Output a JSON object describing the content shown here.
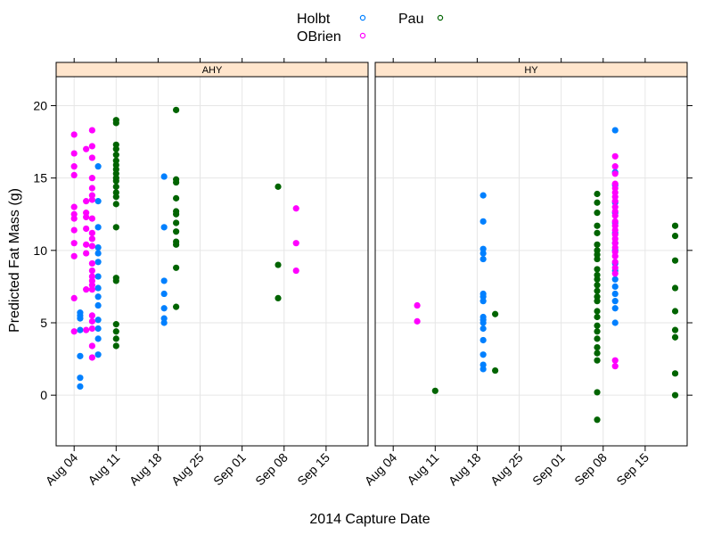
{
  "chart_data": {
    "type": "scatter",
    "xlabel": "2014 Capture Date",
    "ylabel": "Predicted Fat Mass (g)",
    "ylim": [
      -3.5,
      22
    ],
    "y_ticks": [
      0,
      5,
      10,
      15,
      20
    ],
    "x_ticks": [
      "Aug 04",
      "Aug 11",
      "Aug 18",
      "Aug 25",
      "Sep 01",
      "Sep 08",
      "Sep 15"
    ],
    "x_tick_dates": [
      "2014-08-04",
      "2014-08-11",
      "2014-08-18",
      "2014-08-25",
      "2014-09-01",
      "2014-09-08",
      "2014-09-15"
    ],
    "grid": true,
    "legend": {
      "placement": "top",
      "entries": [
        {
          "name": "Holbt",
          "color": "#0080ff"
        },
        {
          "name": "OBrien",
          "color": "#ff00ff"
        },
        {
          "name": "Pau",
          "color": "#006400"
        }
      ]
    },
    "panels": [
      {
        "strip": "AHY",
        "xlim": [
          "2014-08-01",
          "2014-09-22"
        ],
        "series": [
          {
            "name": "Holbt",
            "color": "#0080ff",
            "points": [
              {
                "x": "2014-08-05",
                "y": [
                  0.6,
                  1.2,
                  2.7,
                  4.5,
                  5.3,
                  5.5,
                  5.7
                ]
              },
              {
                "x": "2014-08-08",
                "y": [
                  2.8,
                  3.9,
                  4.6,
                  5.2,
                  6.2,
                  6.8,
                  7.4,
                  8.2,
                  9.2,
                  9.8,
                  10.2,
                  11.6,
                  13.4,
                  15.8
                ]
              },
              {
                "x": "2014-08-19",
                "y": [
                  5.0,
                  5.3,
                  6.0,
                  7.0,
                  7.9,
                  11.6,
                  15.1
                ]
              }
            ]
          },
          {
            "name": "OBrien",
            "color": "#ff00ff",
            "points": [
              {
                "x": "2014-08-04",
                "y": [
                  4.4,
                  6.7,
                  9.6,
                  10.5,
                  11.4,
                  12.2,
                  12.5,
                  13.0,
                  15.2,
                  15.8,
                  16.7,
                  18.0
                ]
              },
              {
                "x": "2014-08-06",
                "y": [
                  4.5,
                  7.3,
                  9.8,
                  10.4,
                  11.5,
                  12.3,
                  12.6,
                  13.4,
                  17.0
                ]
              },
              {
                "x": "2014-08-07",
                "y": [
                  2.6,
                  3.4,
                  4.6,
                  5.1,
                  5.5,
                  7.3,
                  7.6,
                  7.9,
                  8.2,
                  8.6,
                  9.1,
                  10.3,
                  10.8,
                  11.2,
                  12.2,
                  13.5,
                  13.8,
                  14.3,
                  15.0,
                  16.4,
                  17.2,
                  18.3
                ]
              },
              {
                "x": "2014-09-10",
                "y": [
                  8.6,
                  10.5,
                  12.9
                ]
              }
            ]
          },
          {
            "name": "Pau",
            "color": "#006400",
            "points": [
              {
                "x": "2014-08-11",
                "y": [
                  3.4,
                  3.9,
                  4.4,
                  4.9,
                  7.9,
                  8.1,
                  11.6,
                  13.2,
                  13.7,
                  14.0,
                  14.4,
                  14.8,
                  15.0,
                  15.3,
                  15.6,
                  15.9,
                  16.2,
                  16.6,
                  17.0,
                  17.3,
                  18.8,
                  19.0
                ]
              },
              {
                "x": "2014-08-21",
                "y": [
                  6.1,
                  8.8,
                  10.4,
                  10.6,
                  11.3,
                  11.9,
                  12.5,
                  12.7,
                  13.6,
                  14.7,
                  14.9,
                  19.7
                ]
              },
              {
                "x": "2014-09-07",
                "y": [
                  6.7,
                  9.0,
                  14.4
                ]
              }
            ]
          }
        ]
      },
      {
        "strip": "HY",
        "xlim": [
          "2014-08-01",
          "2014-09-22"
        ],
        "series": [
          {
            "name": "Holbt",
            "color": "#0080ff",
            "points": [
              {
                "x": "2014-08-19",
                "y": [
                  1.8,
                  2.1,
                  2.8,
                  3.8,
                  4.6,
                  5.0,
                  5.2,
                  5.4,
                  6.5,
                  6.8,
                  7.0,
                  9.4,
                  9.8,
                  10.1,
                  12.0,
                  13.8
                ]
              },
              {
                "x": "2014-09-10",
                "y": [
                  5.0,
                  6.0,
                  6.5,
                  7.0,
                  7.5,
                  8.0,
                  8.6,
                  9.1,
                  10.0,
                  10.5,
                  11.2,
                  11.9,
                  12.6,
                  13.3,
                  14.5,
                  15.4,
                  18.3
                ]
              }
            ]
          },
          {
            "name": "OBrien",
            "color": "#ff00ff",
            "points": [
              {
                "x": "2014-08-08",
                "y": [
                  5.1,
                  6.2
                ]
              },
              {
                "x": "2014-09-10",
                "y": [
                  2.0,
                  2.4,
                  8.4,
                  8.8,
                  9.2,
                  9.6,
                  9.9,
                  10.2,
                  10.5,
                  10.8,
                  11.1,
                  11.4,
                  11.7,
                  12.0,
                  12.4,
                  12.7,
                  13.0,
                  13.4,
                  13.7,
                  14.0,
                  14.3,
                  14.6,
                  15.3,
                  15.8,
                  16.5
                ]
              }
            ]
          },
          {
            "name": "Pau",
            "color": "#006400",
            "points": [
              {
                "x": "2014-08-11",
                "y": [
                  0.3
                ]
              },
              {
                "x": "2014-08-21",
                "y": [
                  1.7,
                  5.6
                ]
              },
              {
                "x": "2014-09-07",
                "y": [
                  -1.7,
                  0.2,
                  2.4,
                  2.9,
                  3.3,
                  3.9,
                  4.4,
                  4.8,
                  5.4,
                  5.8,
                  6.5,
                  6.8,
                  7.2,
                  7.6,
                  8.0,
                  8.3,
                  8.7,
                  9.4,
                  9.7,
                  10.0,
                  10.4,
                  11.2,
                  11.7,
                  12.6,
                  13.3,
                  13.9
                ]
              },
              {
                "x": "2014-09-20",
                "y": [
                  0.0,
                  1.5,
                  4.0,
                  4.5,
                  5.8,
                  7.4,
                  9.3,
                  11.0,
                  11.7
                ]
              }
            ]
          }
        ]
      }
    ]
  }
}
